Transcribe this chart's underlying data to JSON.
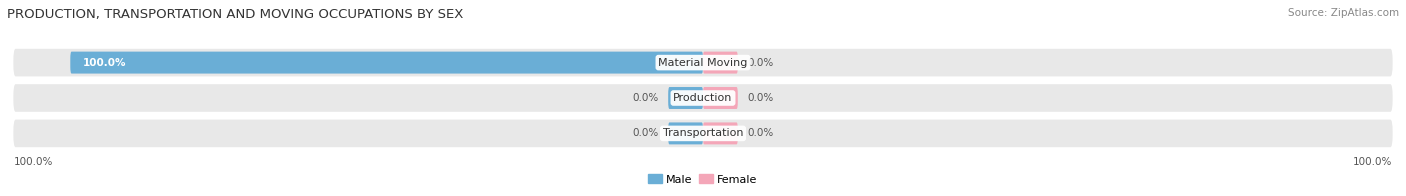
{
  "title": "PRODUCTION, TRANSPORTATION AND MOVING OCCUPATIONS BY SEX",
  "source": "Source: ZipAtlas.com",
  "categories": [
    "Material Moving",
    "Production",
    "Transportation"
  ],
  "male_values": [
    100.0,
    0.0,
    0.0
  ],
  "female_values": [
    0.0,
    0.0,
    0.0
  ],
  "male_color": "#6aaed6",
  "female_color": "#f4a6b8",
  "bar_bg_color": "#e8e8e8",
  "title_color": "#333333",
  "source_color": "#888888",
  "label_color": "#555555",
  "bar_label_color_on_blue": "#ffffff",
  "small_vis": 5.5,
  "xlim_abs": 110,
  "title_fontsize": 9.5,
  "source_fontsize": 7.5,
  "label_fontsize": 7.5,
  "cat_fontsize": 8,
  "figsize": [
    14.06,
    1.96
  ],
  "dpi": 100
}
